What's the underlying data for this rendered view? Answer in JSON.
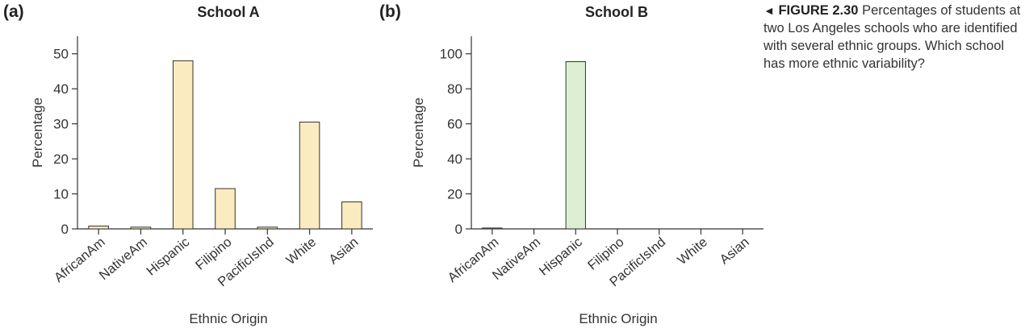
{
  "chart_data": [
    {
      "type": "bar",
      "panel_label": "(a)",
      "title": "School A",
      "xlabel": "Ethnic Origin",
      "ylabel": "Percentage",
      "categories": [
        "AfricanAm",
        "NativeAm",
        "Hispanic",
        "Filipino",
        "PacificIsInd",
        "White",
        "Asian"
      ],
      "values": [
        0.8,
        0.5,
        48,
        11.5,
        0.5,
        30.5,
        7.7
      ],
      "yticks": [
        0,
        10,
        20,
        30,
        40,
        50
      ],
      "ylim": [
        0,
        55
      ],
      "bar_color": "#fbebc0",
      "grid": false
    },
    {
      "type": "bar",
      "panel_label": "(b)",
      "title": "School B",
      "xlabel": "Ethnic Origin",
      "ylabel": "Percentage",
      "categories": [
        "AfricanAm",
        "NativeAm",
        "Hispanic",
        "Filipino",
        "PacificIsInd",
        "White",
        "Asian"
      ],
      "values": [
        0.5,
        0,
        95.5,
        0,
        0,
        0,
        0
      ],
      "yticks": [
        0,
        20,
        40,
        60,
        80,
        100
      ],
      "ylim": [
        0,
        110
      ],
      "bar_color": "#dcefd3",
      "grid": false
    }
  ],
  "caption": {
    "arrow": "◄",
    "figure_number": "FIGURE 2.30",
    "text": "Percentages of students at two Los Angeles schools who are identified with several ethnic groups. Which school has more ethnic variability?"
  }
}
